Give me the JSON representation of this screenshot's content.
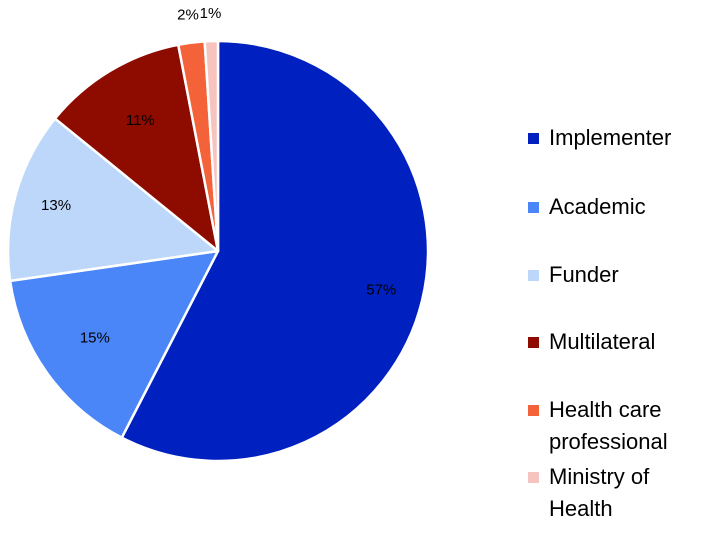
{
  "chart_data": {
    "type": "pie",
    "title": "",
    "start_angle_deg": 0,
    "direction": "clockwise",
    "slices": [
      {
        "label": "Implementer",
        "value": 57,
        "value_label": "57%",
        "color": "#0020C0"
      },
      {
        "label": "Academic",
        "value": 15,
        "value_label": "15%",
        "color": "#4A86F7"
      },
      {
        "label": "Funder",
        "value": 13,
        "value_label": "13%",
        "color": "#BDD7FA"
      },
      {
        "label": "Multilateral",
        "value": 11,
        "value_label": "11%",
        "color": "#8E0B00"
      },
      {
        "label": "Health care professional",
        "value": 2,
        "value_label": "2%",
        "color": "#F4623A"
      },
      {
        "label": "Ministry of Health",
        "value": 1,
        "value_label": "1%",
        "color": "#F7C3BE"
      }
    ],
    "legend_position": "right"
  }
}
